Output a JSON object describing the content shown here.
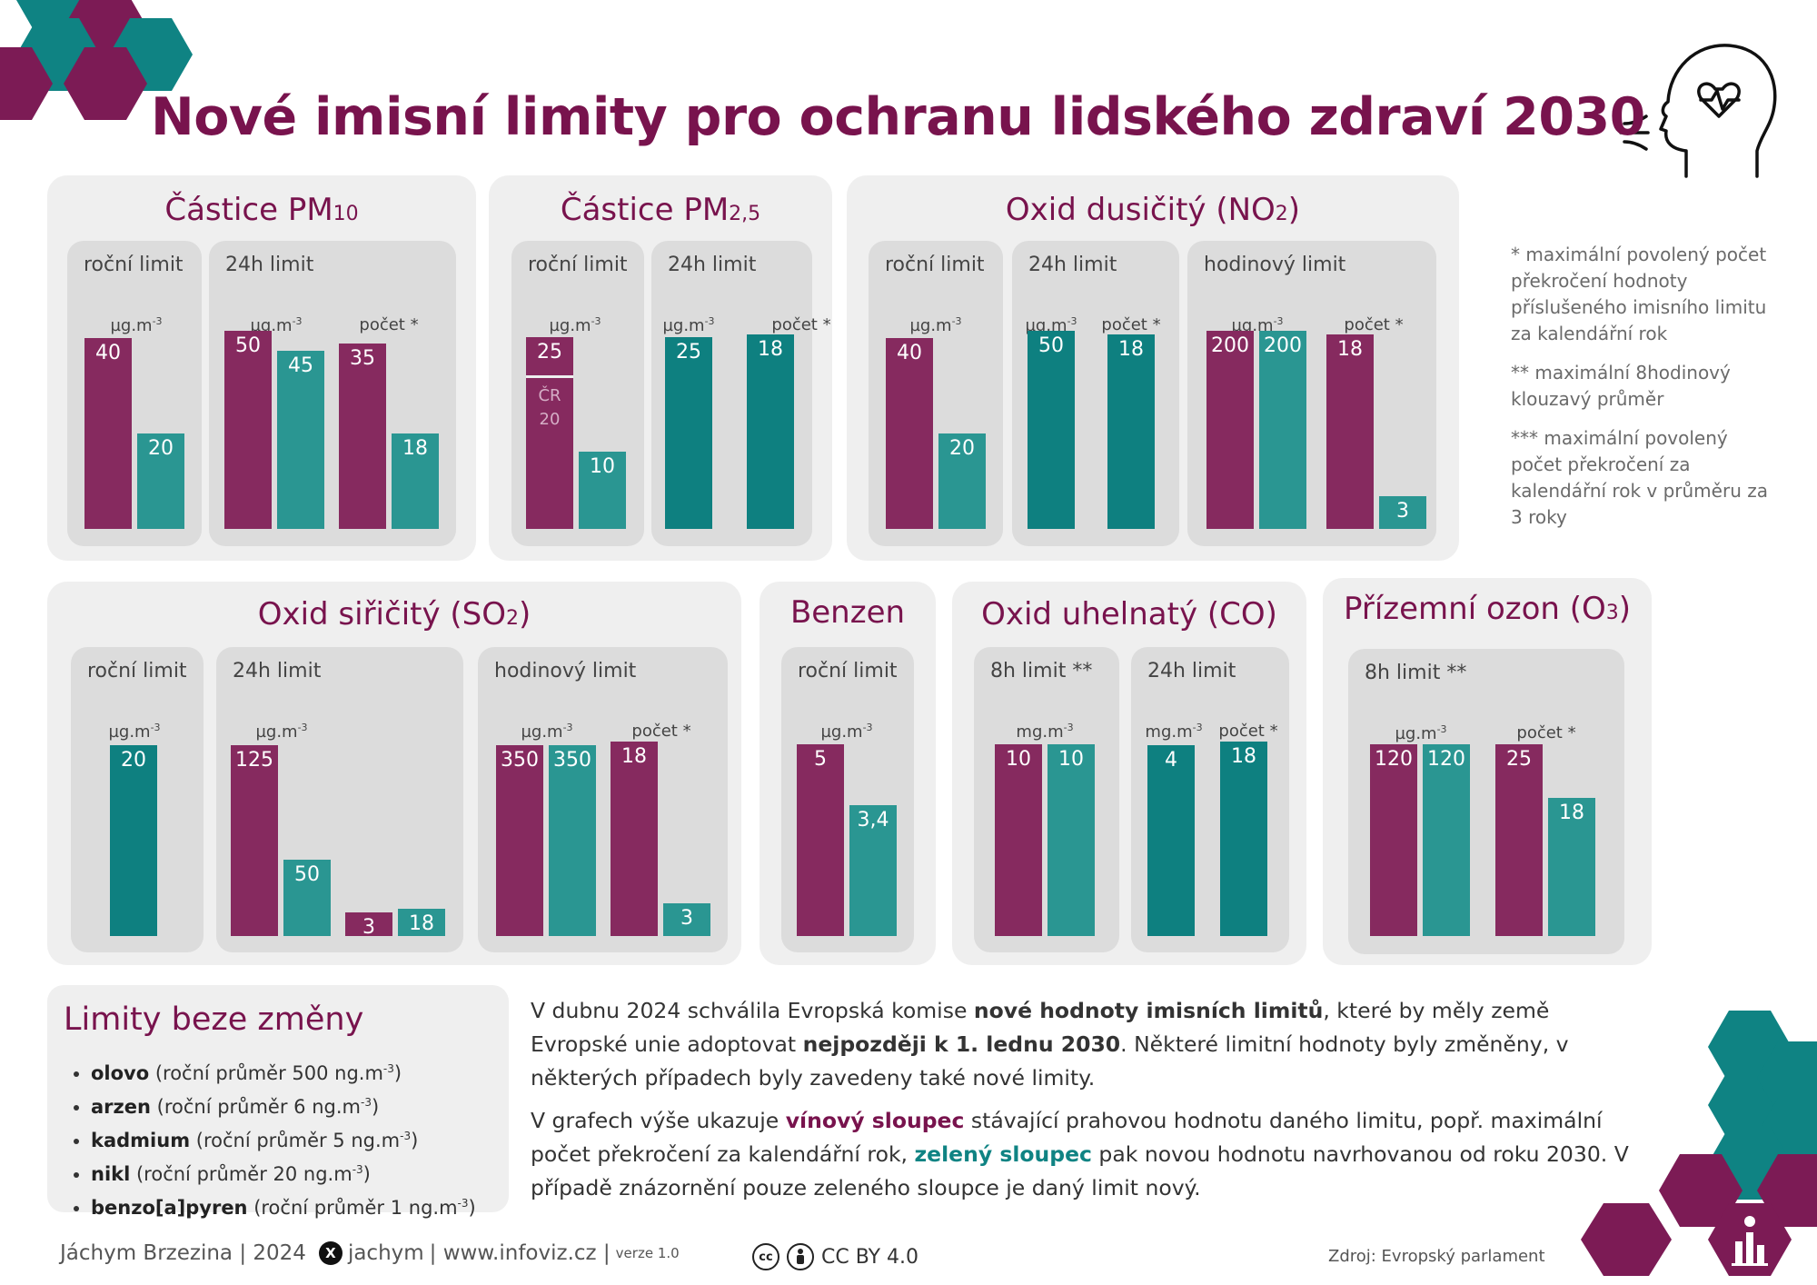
{
  "title": "Nové imisní limity pro ochranu lidského zdraví 2030",
  "colors": {
    "old": "#862a5f",
    "new": "#2a9692",
    "new_dark": "#0e8080",
    "title": "#78134d"
  },
  "icons": [
    "hexagon-decoration",
    "head-heart-icon",
    "infographic-logo-icon",
    "cc-icon",
    "by-icon",
    "x-logo-icon"
  ],
  "chart_data": [
    {
      "type": "bar",
      "title": "Částice PM",
      "title_sub": "10",
      "groups": [
        {
          "label": "roční limit",
          "units": [
            {
              "text": "µg.m",
              "sup": "-3"
            }
          ],
          "bars": [
            {
              "series": "stávající",
              "value": 40,
              "label": "40"
            },
            {
              "series": "nová",
              "value": 20,
              "label": "20"
            }
          ]
        },
        {
          "label": "24h limit",
          "units": [
            {
              "text": "µg.m",
              "sup": "-3"
            },
            {
              "text": "počet *",
              "sup": ""
            }
          ],
          "bars": [
            {
              "series": "stávající",
              "value": 50,
              "label": "50"
            },
            {
              "series": "nová",
              "value": 45,
              "label": "45"
            },
            {
              "series": "stávající",
              "value": 35,
              "label": "35"
            },
            {
              "series": "nová",
              "value": 18,
              "label": "18"
            }
          ]
        }
      ]
    },
    {
      "type": "bar",
      "title": "Částice PM",
      "title_sub": "2,5",
      "groups": [
        {
          "label": "roční limit",
          "units": [
            {
              "text": "µg.m",
              "sup": "-3"
            }
          ],
          "bars": [
            {
              "series": "stávající",
              "value": 25,
              "label": "25",
              "note": "ČR\n20",
              "note_value": 20
            },
            {
              "series": "nová",
              "value": 10,
              "label": "10"
            }
          ]
        },
        {
          "label": "24h limit",
          "units": [
            {
              "text": "µg.m",
              "sup": "-3"
            },
            {
              "text": "počet *",
              "sup": ""
            }
          ],
          "bars": [
            {
              "series": "nová",
              "value": 25,
              "label": "25"
            },
            {
              "series": "nová",
              "value": 18,
              "label": "18"
            }
          ]
        }
      ]
    },
    {
      "type": "bar",
      "title": "Oxid dusičitý (NO",
      "title_sub": "2",
      "title_end": ")",
      "groups": [
        {
          "label": "roční limit",
          "units": [
            {
              "text": "µg.m",
              "sup": "-3"
            }
          ],
          "bars": [
            {
              "series": "stávající",
              "value": 40,
              "label": "40"
            },
            {
              "series": "nová",
              "value": 20,
              "label": "20"
            }
          ]
        },
        {
          "label": "24h limit",
          "units": [
            {
              "text": "µg.m",
              "sup": "-3"
            },
            {
              "text": "počet *",
              "sup": ""
            }
          ],
          "bars": [
            {
              "series": "nová",
              "value": 50,
              "label": "50"
            },
            {
              "series": "nová",
              "value": 18,
              "label": "18"
            }
          ]
        },
        {
          "label": "hodinový limit",
          "units": [
            {
              "text": "µg.m",
              "sup": "-3"
            },
            {
              "text": "počet *",
              "sup": ""
            }
          ],
          "bars": [
            {
              "series": "stávající",
              "value": 200,
              "label": "200"
            },
            {
              "series": "nová",
              "value": 200,
              "label": "200"
            },
            {
              "series": "stávající",
              "value": 18,
              "label": "18"
            },
            {
              "series": "nová",
              "value": 3,
              "label": "3"
            }
          ]
        }
      ]
    },
    {
      "type": "bar",
      "title": "Oxid siřičitý (SO",
      "title_sub": "2",
      "title_end": ")",
      "groups": [
        {
          "label": "roční limit",
          "units": [
            {
              "text": "µg.m",
              "sup": "-3"
            }
          ],
          "bars": [
            {
              "series": "nová",
              "value": 20,
              "label": "20"
            }
          ]
        },
        {
          "label": "24h limit",
          "units": [
            {
              "text": "µg.m",
              "sup": "-3"
            }
          ],
          "bars": [
            {
              "series": "stávající",
              "value": 125,
              "label": "125"
            },
            {
              "series": "nová",
              "value": 50,
              "label": "50"
            },
            {
              "series": "stávající",
              "value": 3,
              "label": "3"
            },
            {
              "series": "nová",
              "value": 18,
              "label": "18"
            }
          ]
        },
        {
          "label": "hodinový limit",
          "units": [
            {
              "text": "µg.m",
              "sup": "-3"
            },
            {
              "text": "počet *",
              "sup": ""
            }
          ],
          "bars": [
            {
              "series": "stávající",
              "value": 350,
              "label": "350"
            },
            {
              "series": "nová",
              "value": 350,
              "label": "350"
            },
            {
              "series": "stávající",
              "value": 18,
              "label": "18"
            },
            {
              "series": "nová",
              "value": 3,
              "label": "3"
            }
          ]
        }
      ]
    },
    {
      "type": "bar",
      "title": "Benzen",
      "groups": [
        {
          "label": "roční limit",
          "units": [
            {
              "text": "µg.m",
              "sup": "-3"
            }
          ],
          "bars": [
            {
              "series": "stávající",
              "value": 5,
              "label": "5"
            },
            {
              "series": "nová",
              "value": 3.4,
              "label": "3,4"
            }
          ]
        }
      ]
    },
    {
      "type": "bar",
      "title": "Oxid uhelnatý (CO)",
      "groups": [
        {
          "label": "8h limit **",
          "units": [
            {
              "text": "mg.m",
              "sup": "-3"
            }
          ],
          "bars": [
            {
              "series": "stávající",
              "value": 10,
              "label": "10"
            },
            {
              "series": "nová",
              "value": 10,
              "label": "10"
            }
          ]
        },
        {
          "label": "24h limit",
          "units": [
            {
              "text": "mg.m",
              "sup": "-3"
            },
            {
              "text": "počet *",
              "sup": ""
            }
          ],
          "bars": [
            {
              "series": "nová",
              "value": 4,
              "label": "4"
            },
            {
              "series": "nová",
              "value": 18,
              "label": "18"
            }
          ]
        }
      ]
    },
    {
      "type": "bar",
      "title": "Přízemní ozon (O",
      "title_sub": "3",
      "title_end": ")",
      "groups": [
        {
          "label": "8h limit **",
          "units": [
            {
              "text": "µg.m",
              "sup": "-3"
            },
            {
              "text": "počet *",
              "sup": ""
            }
          ],
          "bars": [
            {
              "series": "stávající",
              "value": 120,
              "label": "120"
            },
            {
              "series": "nová",
              "value": 120,
              "label": "120"
            },
            {
              "series": "stávající",
              "value": 25,
              "label": "25"
            },
            {
              "series": "nová",
              "value": 18,
              "label": "18"
            }
          ]
        }
      ]
    }
  ],
  "notes": [
    "* maximální povolený počet překročení hodnoty příslušeného imisního limitu za kalendářní rok",
    "** maximální 8hodinový klouzavý průměr",
    "*** maximální povolený počet překročení za kalendářní rok v průměru za 3 roky"
  ],
  "unchanged": {
    "title": "Limity beze změny",
    "unit": "ng.m",
    "unit_sup": "-3",
    "items": [
      {
        "name": "olovo",
        "detail_pre": "(roční průměr 500 ",
        "detail_post": ")"
      },
      {
        "name": "arzen",
        "detail_pre": "(roční průměr 6 ",
        "detail_post": ")"
      },
      {
        "name": "kadmium",
        "detail_pre": "(roční průměr 5 ",
        "detail_post": ")"
      },
      {
        "name": "nikl",
        "detail_pre": "(roční průměr 20 ",
        "detail_post": ")"
      },
      {
        "name": "benzo[a]pyren",
        "detail_pre": "(roční průměr 1 ",
        "detail_post": ")"
      }
    ]
  },
  "description": {
    "p1_a": "V dubnu 2024 schválila Evropská komise ",
    "p1_b": "nové hodnoty imisních limitů",
    "p1_c": ", které by měly země Evropské unie adoptovat ",
    "p1_d": "nejpozději k 1. lednu 2030",
    "p1_e": ". Některé limitní hodnoty byly změněny, v některých případech byly zavedeny také nové limity.",
    "p2_a": "V grafech výše ukazuje ",
    "p2_b": "vínový sloupec",
    "p2_c": " stávající prahovou hodnotu daného limitu, popř. maximální počet překročení za kalendářní rok, ",
    "p2_d": "zelený sloupec",
    "p2_e": " pak novou hodnotu navrhovanou od roku 2030. V případě znázornění pouze zeleného sloupce je daný limit nový."
  },
  "footer": {
    "author": "Jáchym Brzezina | 2024",
    "handle": "jachym",
    "site": "| www.infoviz.cz |",
    "version": "verze 1.0",
    "license": "CC BY 4.0",
    "source": "Zdroj: Evropský parlament"
  }
}
